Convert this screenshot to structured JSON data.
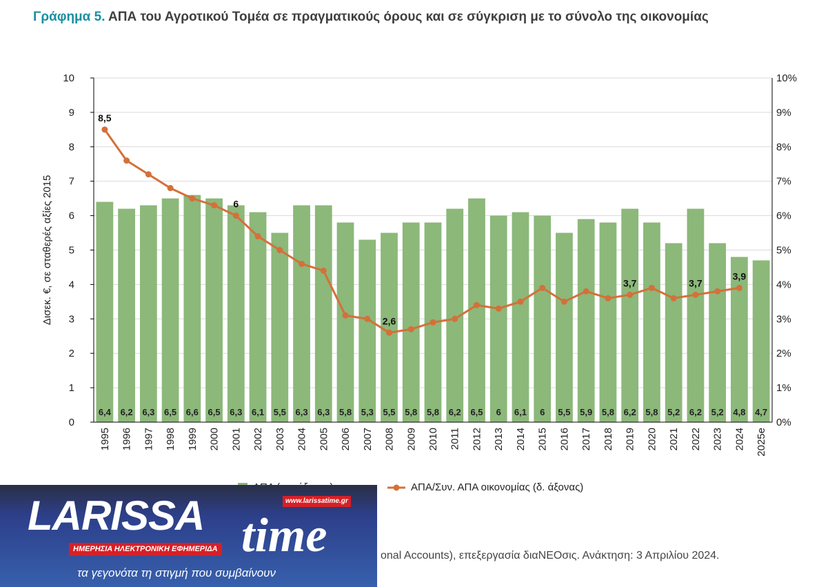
{
  "title": {
    "number": "Γράφημα 5.",
    "text": " ΑΠΑ του Αγροτικού Τομέα σε πραγματικούς όρους και σε σύγκριση με το σύνολο της οικονομίας"
  },
  "chart_data": {
    "type": "bar+line",
    "categories": [
      "1995",
      "1996",
      "1997",
      "1998",
      "1999",
      "2000",
      "2001",
      "2002",
      "2003",
      "2004",
      "2005",
      "2006",
      "2007",
      "2008",
      "2009",
      "2010",
      "2011",
      "2012",
      "2013",
      "2014",
      "2015",
      "2016",
      "2017",
      "2018",
      "2019",
      "2020",
      "2021",
      "2022",
      "2023",
      "2024",
      "2025e"
    ],
    "series": [
      {
        "name": "ΑΠΑ (αρ. άξονας)",
        "type": "bar",
        "axis": "left",
        "color": "#8cb87a",
        "values": [
          6.4,
          6.2,
          6.3,
          6.5,
          6.6,
          6.5,
          6.3,
          6.1,
          5.5,
          6.3,
          6.3,
          5.8,
          5.3,
          5.5,
          5.8,
          5.8,
          6.2,
          6.5,
          6,
          6.1,
          6,
          5.5,
          5.9,
          5.8,
          6.2,
          5.8,
          5.2,
          6.2,
          5.2,
          4.8,
          4.7
        ],
        "labels": [
          "6,4",
          "6,2",
          "6,3",
          "6,5",
          "6,6",
          "6,5",
          "6,3",
          "6,1",
          "5,5",
          "6,3",
          "6,3",
          "5,8",
          "5,3",
          "5,5",
          "5,8",
          "5,8",
          "6,2",
          "6,5",
          "6",
          "6,1",
          "6",
          "5,5",
          "5,9",
          "5,8",
          "6,2",
          "5,8",
          "5,2",
          "6,2",
          "5,2",
          "4,8",
          "4,7"
        ]
      },
      {
        "name": "ΑΠΑ/Συν. ΑΠΑ οικονομίας (δ. άξονας)",
        "type": "line",
        "axis": "right",
        "color": "#d4703a",
        "values": [
          8.5,
          7.6,
          7.2,
          6.8,
          6.5,
          6.3,
          6.0,
          5.4,
          5.0,
          4.6,
          4.4,
          3.1,
          3.0,
          2.6,
          2.7,
          2.9,
          3.0,
          3.4,
          3.3,
          3.5,
          3.9,
          3.5,
          3.8,
          3.6,
          3.7,
          3.9,
          3.6,
          3.7,
          3.8,
          3.9,
          null
        ],
        "annotations": [
          {
            "index": 0,
            "label": "8,5"
          },
          {
            "index": 6,
            "label": "6"
          },
          {
            "index": 13,
            "label": "2,6"
          },
          {
            "index": 24,
            "label": "3,7"
          },
          {
            "index": 27,
            "label": "3,7"
          },
          {
            "index": 29,
            "label": "3,9"
          }
        ]
      }
    ],
    "ylabel": "Δισεκ. €, σε σταθερές αξίες 2015",
    "ylim": [
      0,
      10
    ],
    "yticks": [
      "0",
      "1",
      "2",
      "3",
      "4",
      "5",
      "6",
      "7",
      "8",
      "9",
      "10"
    ],
    "y2lim": [
      0,
      10
    ],
    "y2ticks": [
      "0%",
      "1%",
      "2%",
      "3%",
      "4%",
      "5%",
      "6%",
      "7%",
      "8%",
      "9%",
      "10%"
    ],
    "grid": true,
    "legend": "bottom"
  },
  "legend": {
    "bar": "ΑΠΑ (αρ. άξονας)",
    "line": "ΑΠΑ/Συν. ΑΠΑ οικονομίας (δ. άξονας)"
  },
  "source": "onal Accounts), επεξεργασία διαΝΕΟσις. Ανάκτηση: 3 Απριλίου 2024.",
  "logo": {
    "name": "LARISSA",
    "time": "time",
    "url": "www.larissatime.gr",
    "subtitle": "ΗΜΕΡΗΣΙΑ ΗΛΕΚΤΡΟΝΙΚΗ ΕΦΗΜΕΡΙΔΑ",
    "slogan": "τα γεγονότα τη στιγμή που συμβαίνουν"
  }
}
